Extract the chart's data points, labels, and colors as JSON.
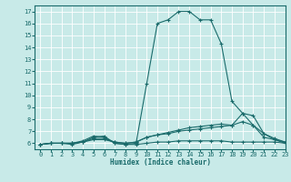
{
  "xlabel": "Humidex (Indice chaleur)",
  "ylabel": "",
  "bg_color": "#c8eae8",
  "line_color": "#1a6b6b",
  "grid_color": "#ffffff",
  "xlim": [
    -0.5,
    23
  ],
  "ylim": [
    5.5,
    17.5
  ],
  "yticks": [
    6,
    7,
    8,
    9,
    10,
    11,
    12,
    13,
    14,
    15,
    16,
    17
  ],
  "xticks": [
    0,
    1,
    2,
    3,
    4,
    5,
    6,
    7,
    8,
    9,
    10,
    11,
    12,
    13,
    14,
    15,
    16,
    17,
    18,
    19,
    20,
    21,
    22,
    23
  ],
  "curves": [
    {
      "x": [
        0,
        1,
        2,
        3,
        4,
        5,
        6,
        7,
        8,
        9,
        10,
        11,
        12,
        13,
        14,
        15,
        16,
        17,
        18,
        19,
        20,
        21,
        22,
        23
      ],
      "y": [
        5.9,
        6.0,
        6.0,
        6.0,
        6.2,
        6.6,
        6.5,
        6.0,
        5.9,
        6.0,
        11.0,
        16.0,
        16.3,
        17.0,
        17.0,
        16.3,
        16.3,
        14.3,
        9.5,
        8.5,
        7.5,
        6.5,
        6.3,
        6.0
      ]
    },
    {
      "x": [
        0,
        1,
        2,
        3,
        4,
        5,
        6,
        7,
        8,
        9,
        10,
        11,
        12,
        13,
        14,
        15,
        16,
        17,
        18,
        19,
        20,
        21,
        22,
        23
      ],
      "y": [
        5.9,
        6.0,
        6.0,
        6.0,
        6.1,
        6.3,
        6.3,
        6.1,
        6.0,
        6.1,
        6.5,
        6.7,
        6.8,
        7.0,
        7.1,
        7.2,
        7.3,
        7.4,
        7.5,
        7.8,
        7.5,
        6.8,
        6.4,
        6.1
      ]
    },
    {
      "x": [
        0,
        1,
        2,
        3,
        4,
        5,
        6,
        7,
        8,
        9,
        10,
        11,
        12,
        13,
        14,
        15,
        16,
        17,
        18,
        19,
        20,
        21,
        22,
        23
      ],
      "y": [
        5.9,
        6.0,
        6.0,
        5.9,
        6.1,
        6.5,
        6.6,
        6.0,
        5.9,
        5.9,
        6.0,
        6.1,
        6.1,
        6.2,
        6.2,
        6.2,
        6.2,
        6.2,
        6.1,
        6.1,
        6.1,
        6.1,
        6.1,
        6.0
      ]
    },
    {
      "x": [
        0,
        1,
        2,
        3,
        4,
        5,
        6,
        7,
        8,
        9,
        10,
        11,
        12,
        13,
        14,
        15,
        16,
        17,
        18,
        19,
        20,
        21,
        22,
        23
      ],
      "y": [
        5.9,
        6.0,
        6.0,
        6.0,
        6.1,
        6.4,
        6.4,
        6.1,
        6.0,
        6.1,
        6.5,
        6.7,
        6.9,
        7.1,
        7.3,
        7.4,
        7.5,
        7.6,
        7.5,
        8.5,
        8.3,
        6.8,
        6.3,
        6.1
      ]
    }
  ],
  "xlabel_fontsize": 5.5,
  "tick_fontsize": 5.0,
  "marker_size": 3,
  "linewidth": 0.8
}
